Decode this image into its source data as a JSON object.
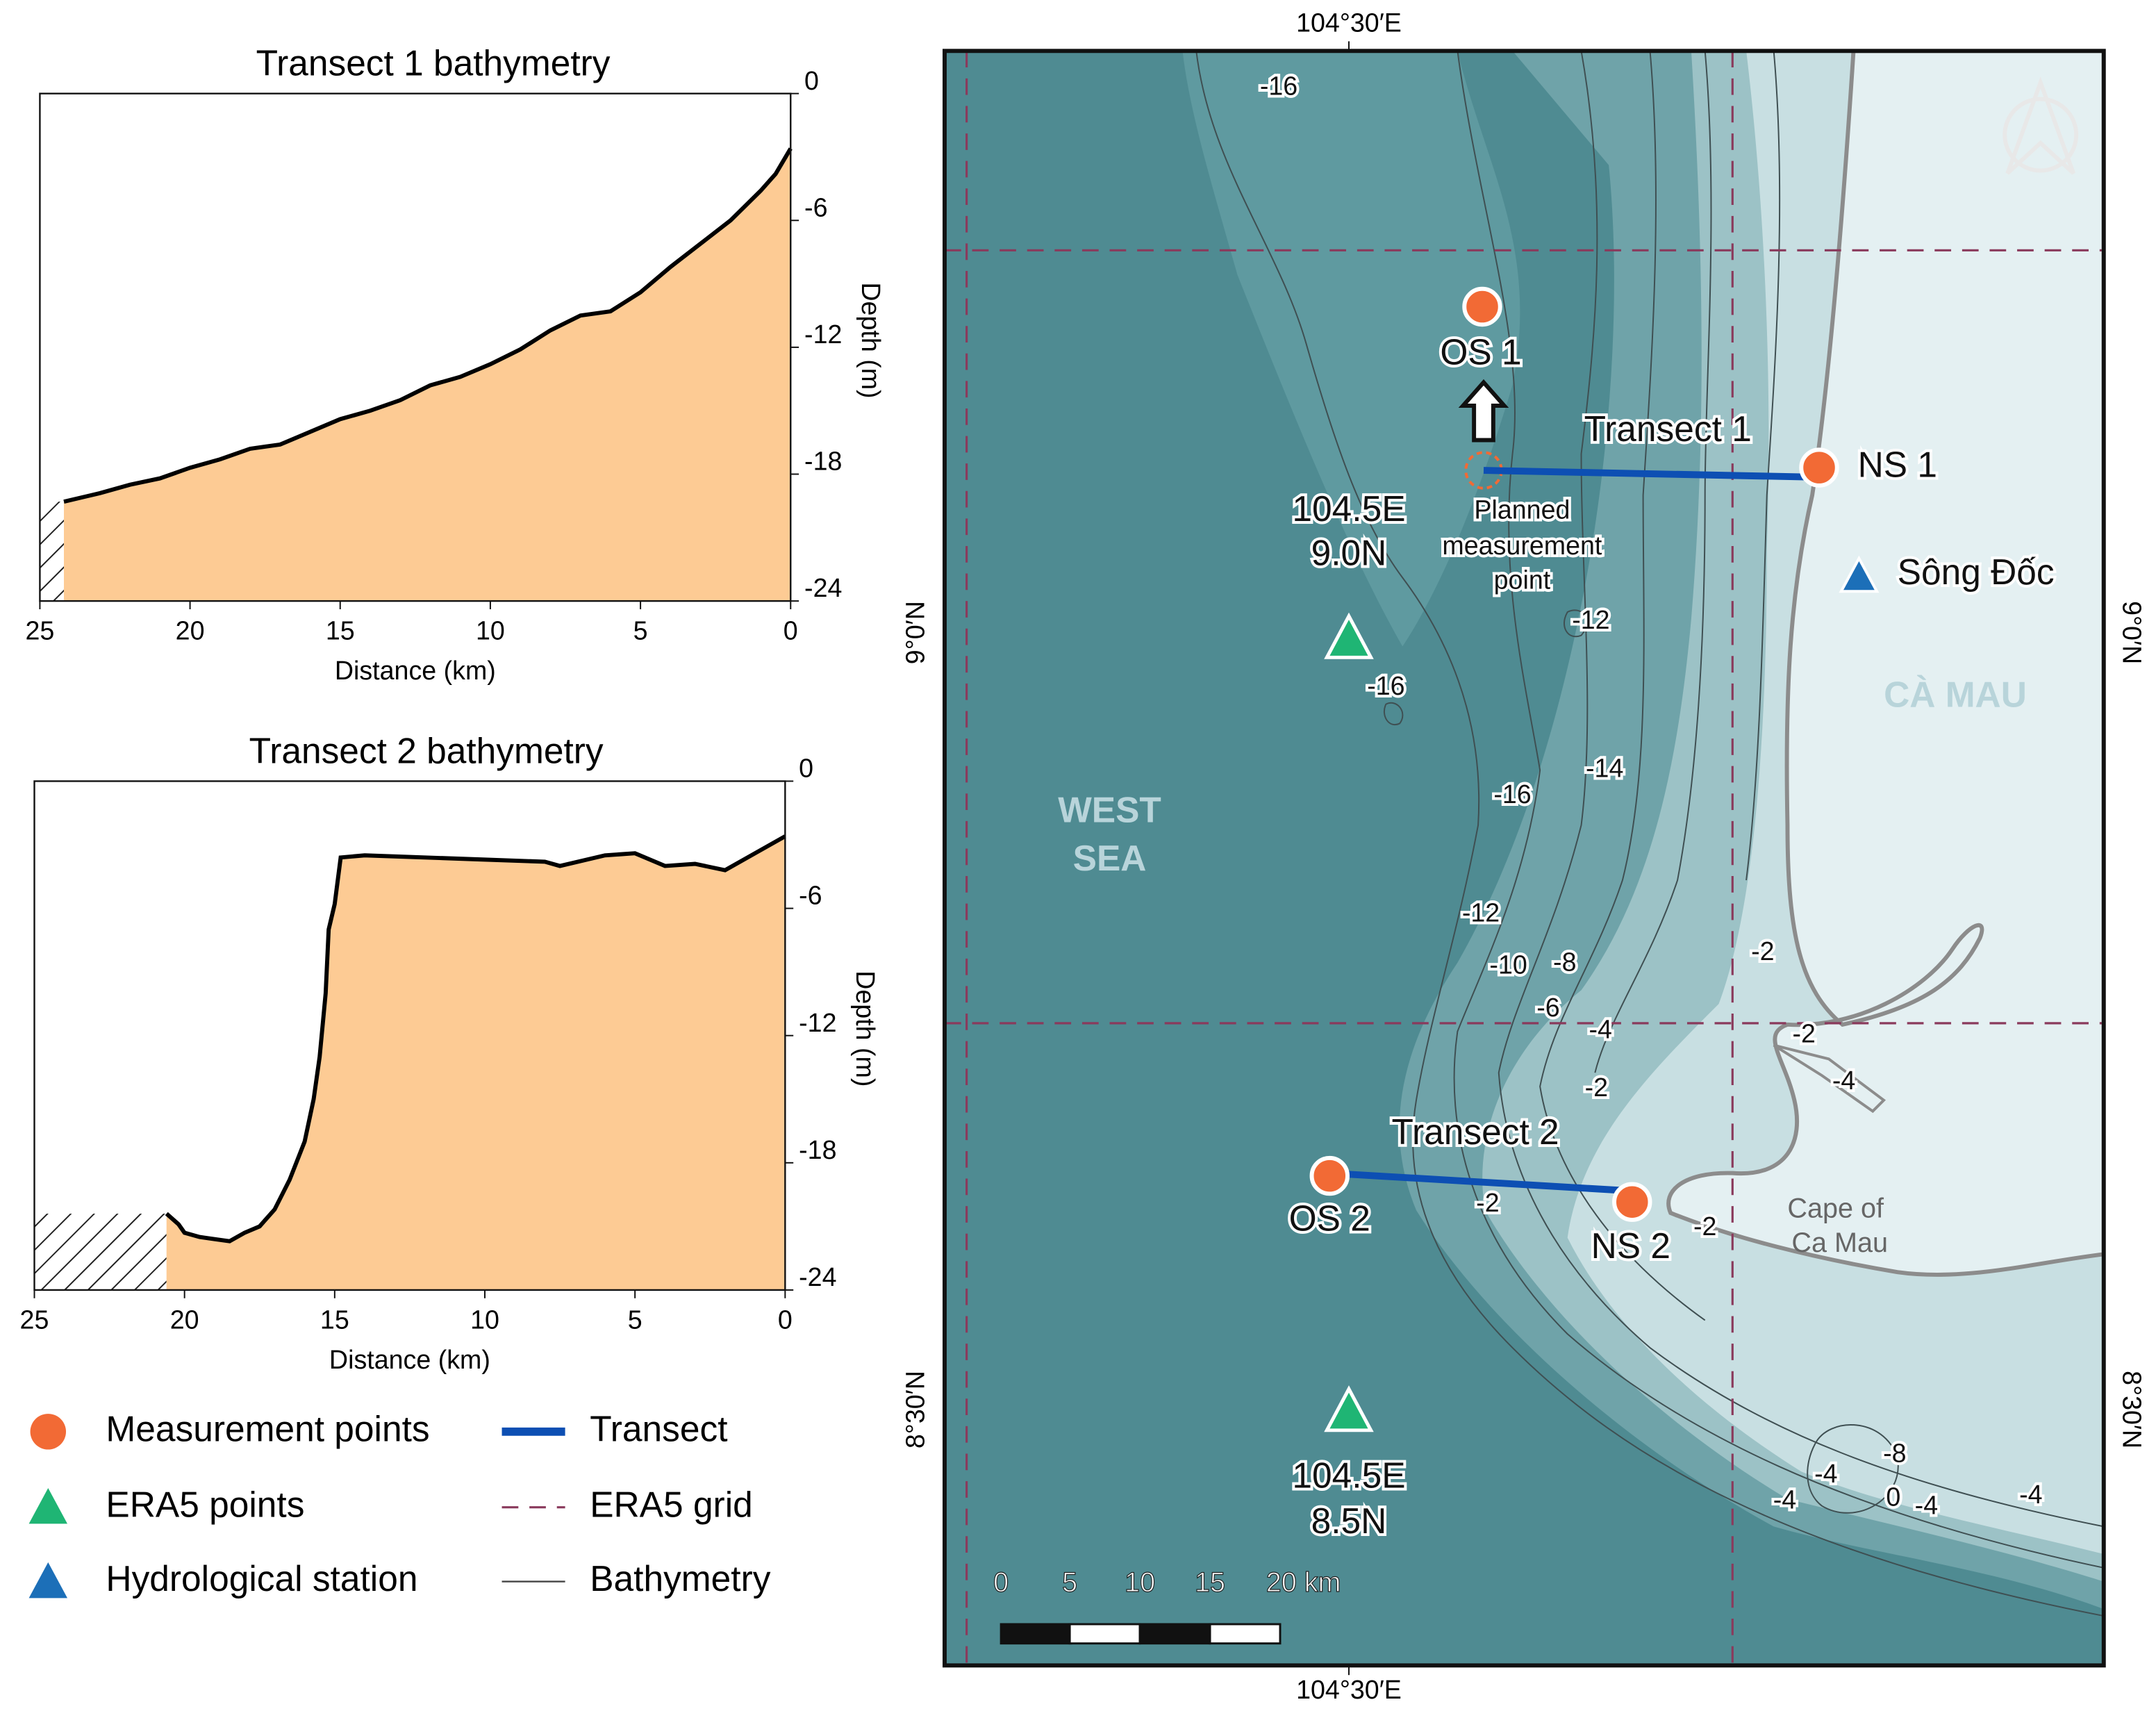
{
  "chart_data": [
    {
      "type": "area",
      "title": "Transect 1 bathymetry",
      "xlabel": "Distance (km)",
      "ylabel": "Depth (m)",
      "x": [
        24.2,
        23,
        22,
        21,
        20,
        19,
        18,
        17,
        16,
        15,
        14,
        13,
        12,
        11,
        10,
        9,
        8,
        7,
        6,
        5,
        4,
        3,
        2,
        1,
        0.5,
        0
      ],
      "series": [
        {
          "color": "#fdcb94",
          "values": [
            -19.3,
            -18.9,
            -18.5,
            -18.2,
            -17.7,
            -17.3,
            -16.8,
            -16.6,
            -16.0,
            -15.4,
            -15.0,
            -14.5,
            -13.8,
            -13.4,
            -12.8,
            -12.1,
            -11.2,
            -10.5,
            -10.3,
            -9.4,
            -8.2,
            -7.1,
            -6.0,
            -4.6,
            -3.8,
            -2.6
          ]
        }
      ],
      "xlim": [
        25,
        0
      ],
      "ylim": [
        -24,
        0
      ],
      "xticks": [
        25,
        20,
        15,
        10,
        5,
        0
      ],
      "yticks": [
        0,
        -6,
        -12,
        -18,
        -24
      ]
    },
    {
      "type": "area",
      "title": "Transect 2 bathymetry",
      "xlabel": "Distance (km)",
      "ylabel": "Depth (m)",
      "x": [
        20.6,
        20.2,
        20,
        19.5,
        19,
        18.5,
        18,
        17.5,
        17,
        16.5,
        16,
        15.7,
        15.5,
        15.3,
        15.2,
        15.0,
        14.8,
        14,
        12,
        10,
        8,
        7.5,
        6,
        5,
        4,
        3,
        2,
        1,
        0
      ],
      "series": [
        {
          "color": "#fdcb94",
          "values": [
            -20.4,
            -20.9,
            -21.3,
            -21.5,
            -21.6,
            -21.7,
            -21.3,
            -21.0,
            -20.2,
            -18.8,
            -17.0,
            -15.0,
            -13.0,
            -10.0,
            -7.0,
            -5.8,
            -3.6,
            -3.5,
            -3.6,
            -3.7,
            -3.8,
            -4.0,
            -3.5,
            -3.4,
            -4.0,
            -3.9,
            -4.2,
            -3.4,
            -2.6
          ]
        }
      ],
      "xlim": [
        25,
        0
      ],
      "ylim": [
        -24,
        0
      ],
      "xticks": [
        25,
        20,
        15,
        10,
        5,
        0
      ],
      "yticks": [
        0,
        -6,
        -12,
        -18,
        -24
      ]
    }
  ],
  "legend": [
    {
      "label": "Measurement points",
      "color": "#f26a35"
    },
    {
      "label": "Transect",
      "color": "#0d4fb3"
    },
    {
      "label": "ERA5 points",
      "color": "#1fb574"
    },
    {
      "label": "ERA5 grid",
      "color": "#8a3a5c"
    },
    {
      "label": "Hydrological station",
      "color": "#1c6fb8"
    },
    {
      "label": "Bathymetry",
      "color": "#444444"
    }
  ],
  "map": {
    "top_label": "104°30′E",
    "bottom_label": "104°30′E",
    "left_labels": [
      "9°0′N",
      "8°30′N"
    ],
    "right_labels": [
      "9°0′N",
      "8°30′N"
    ],
    "labels": [
      "OS 1",
      "NS 1",
      "Transect 1",
      "Planned",
      "measurement",
      "point",
      "104.5E",
      "9.0N",
      "Sông Đốc",
      "CÀ MAU",
      "WEST",
      "SEA",
      "Transect 2",
      "OS 2",
      "NS 2",
      "Cape of",
      "Ca Mau",
      "104.5E",
      "8.5N"
    ],
    "contour_labels": [
      "-16",
      "-12",
      "-16",
      "-14",
      "-16",
      "-12",
      "-10",
      "-8",
      "-6",
      "-2",
      "-4",
      "-2",
      "-4",
      "-2",
      "-2",
      "-2",
      "-8",
      "-4",
      "-4",
      "0",
      "-4",
      "-4"
    ],
    "scale_labels": [
      "0",
      "5",
      "10",
      "15",
      "20 km"
    ]
  }
}
